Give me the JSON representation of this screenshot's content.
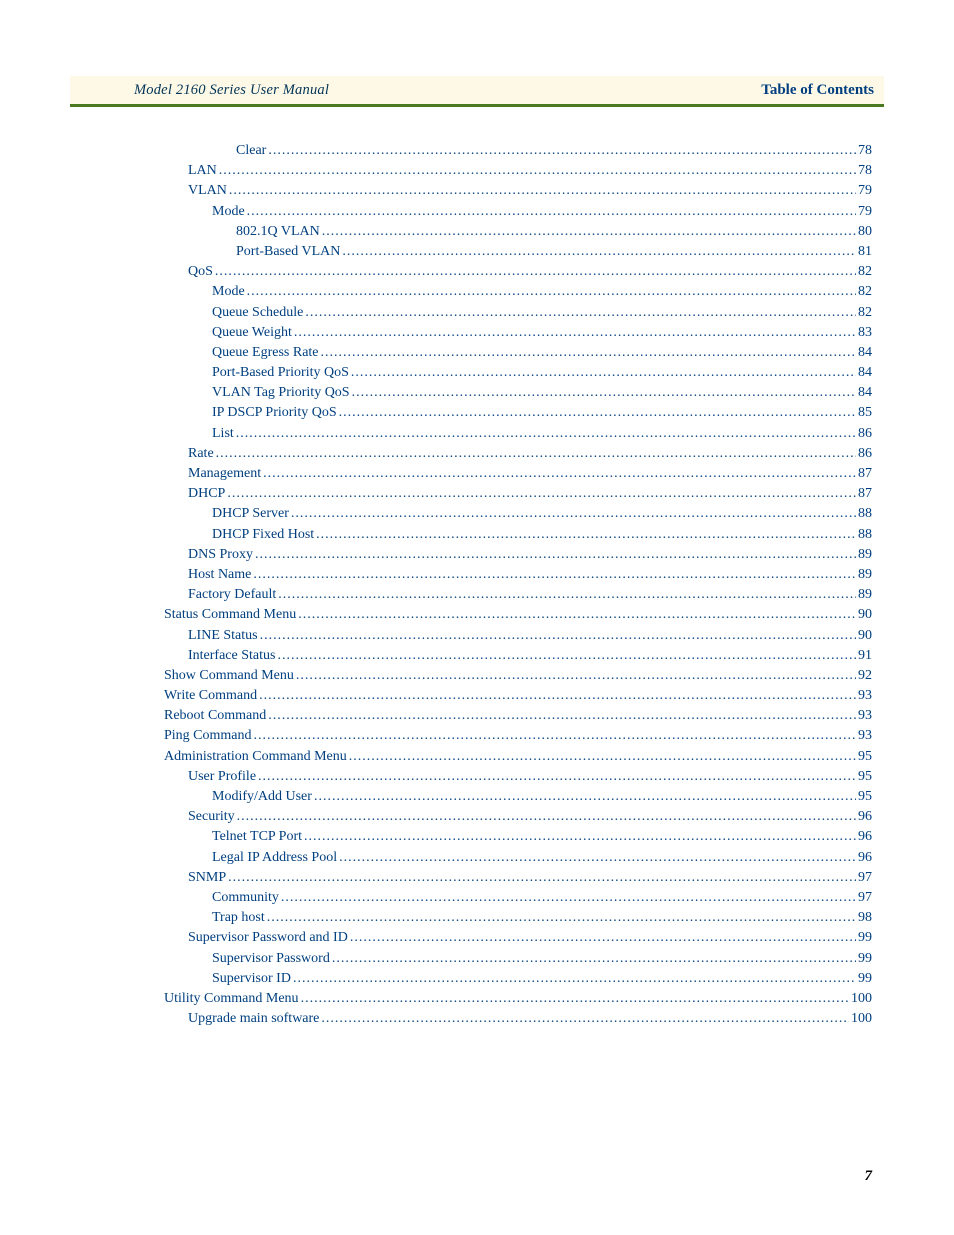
{
  "header": {
    "left": "Model 2160 Series User Manual",
    "right": "Table of Contents"
  },
  "page_number": "7",
  "colors": {
    "link": "#003f7f",
    "header_bg": "#fef9e7",
    "rule": "#4a7a1f"
  },
  "toc": [
    {
      "indent": 4,
      "label": "Clear",
      "page": "78"
    },
    {
      "indent": 2,
      "label": "LAN",
      "page": "78"
    },
    {
      "indent": 2,
      "label": "VLAN",
      "page": "79"
    },
    {
      "indent": 3,
      "label": "Mode",
      "page": "79"
    },
    {
      "indent": 4,
      "label": "802.1Q VLAN",
      "page": "80"
    },
    {
      "indent": 4,
      "label": "Port-Based VLAN",
      "page": "81"
    },
    {
      "indent": 2,
      "label": "QoS",
      "page": "82"
    },
    {
      "indent": 3,
      "label": "Mode",
      "page": "82"
    },
    {
      "indent": 3,
      "label": "Queue Schedule",
      "page": "82"
    },
    {
      "indent": 3,
      "label": "Queue Weight",
      "page": "83"
    },
    {
      "indent": 3,
      "label": "Queue Egress Rate",
      "page": "84"
    },
    {
      "indent": 3,
      "label": "Port-Based Priority QoS",
      "page": "84"
    },
    {
      "indent": 3,
      "label": "VLAN Tag Priority QoS",
      "page": "84"
    },
    {
      "indent": 3,
      "label": "IP DSCP Priority QoS",
      "page": "85"
    },
    {
      "indent": 3,
      "label": "List",
      "page": "86"
    },
    {
      "indent": 2,
      "label": "Rate",
      "page": "86"
    },
    {
      "indent": 2,
      "label": "Management",
      "page": "87"
    },
    {
      "indent": 2,
      "label": "DHCP",
      "page": "87"
    },
    {
      "indent": 3,
      "label": "DHCP Server",
      "page": "88"
    },
    {
      "indent": 3,
      "label": "DHCP Fixed Host",
      "page": "88"
    },
    {
      "indent": 2,
      "label": "DNS Proxy",
      "page": "89"
    },
    {
      "indent": 2,
      "label": "Host Name",
      "page": "89"
    },
    {
      "indent": 2,
      "label": "Factory Default",
      "page": "89"
    },
    {
      "indent": 1,
      "label": "Status Command Menu",
      "page": "90"
    },
    {
      "indent": 2,
      "label": "LINE Status",
      "page": "90"
    },
    {
      "indent": 2,
      "label": "Interface Status",
      "page": "91"
    },
    {
      "indent": 1,
      "label": "Show Command Menu",
      "page": "92"
    },
    {
      "indent": 1,
      "label": "Write Command",
      "page": "93"
    },
    {
      "indent": 1,
      "label": "Reboot Command",
      "page": "93"
    },
    {
      "indent": 1,
      "label": "Ping Command",
      "page": "93"
    },
    {
      "indent": 1,
      "label": "Administration Command Menu",
      "page": "95"
    },
    {
      "indent": 2,
      "label": "User Profile",
      "page": "95"
    },
    {
      "indent": 3,
      "label": "Modify/Add User",
      "page": "95"
    },
    {
      "indent": 2,
      "label": "Security",
      "page": "96"
    },
    {
      "indent": 3,
      "label": "Telnet TCP Port",
      "page": "96"
    },
    {
      "indent": 3,
      "label": "Legal IP Address Pool",
      "page": "96"
    },
    {
      "indent": 2,
      "label": "SNMP",
      "page": "97"
    },
    {
      "indent": 3,
      "label": "Community",
      "page": "97"
    },
    {
      "indent": 3,
      "label": "Trap host",
      "page": "98"
    },
    {
      "indent": 2,
      "label": "Supervisor Password and ID",
      "page": "99"
    },
    {
      "indent": 3,
      "label": "Supervisor Password",
      "page": "99"
    },
    {
      "indent": 3,
      "label": "Supervisor ID",
      "page": "99"
    },
    {
      "indent": 1,
      "label": "Utility Command Menu",
      "page": "100"
    },
    {
      "indent": 2,
      "label": "Upgrade main software",
      "page": "100"
    }
  ]
}
